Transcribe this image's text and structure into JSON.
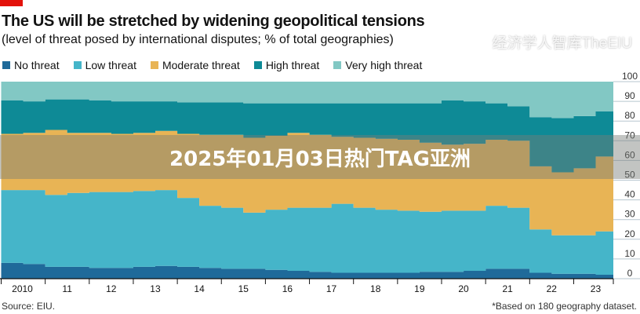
{
  "chart_data": {
    "type": "area",
    "stacked": true,
    "title": "The US will be stretched by widening geopolitical tensions",
    "subtitle": "(level of threat posed by international disputes; % of total geographies)",
    "x": [
      2010,
      2010.5,
      2011,
      2011.5,
      2012,
      2012.5,
      2013,
      2013.5,
      2014,
      2014.5,
      2015,
      2015.5,
      2016,
      2016.5,
      2017,
      2017.5,
      2018,
      2018.5,
      2019,
      2019.5,
      2020,
      2020.5,
      2021,
      2021.5,
      2022,
      2022.5,
      2023,
      2023.5,
      2023.9
    ],
    "x_tick_labels": [
      "2010",
      "11",
      "12",
      "13",
      "14",
      "15",
      "16",
      "17",
      "18",
      "19",
      "20",
      "21",
      "22",
      "23"
    ],
    "y_tick_labels": [
      "0",
      "10",
      "20",
      "30",
      "40",
      "50",
      "60",
      "70",
      "80",
      "90",
      "100"
    ],
    "ylim": [
      0,
      100
    ],
    "y_axis_side": "right",
    "grid": true,
    "legend_position": "top",
    "series": [
      {
        "name": "No threat",
        "color": "#1f6a9a",
        "values": [
          8,
          7.5,
          6,
          6,
          5.5,
          5.5,
          6,
          6.5,
          6,
          5.5,
          5,
          5,
          4.5,
          4,
          3.5,
          3,
          3,
          3,
          3,
          3.5,
          3.5,
          4,
          5,
          5,
          3,
          2.5,
          2.5,
          2,
          2
        ]
      },
      {
        "name": "Low threat",
        "color": "#45b5c9",
        "values": [
          37,
          37.5,
          36.5,
          37.5,
          38.5,
          38.5,
          38.5,
          38.5,
          35,
          31.5,
          31,
          28.5,
          30.5,
          32,
          32.5,
          35,
          33,
          32,
          31.5,
          30.5,
          31,
          30.5,
          32,
          31,
          22,
          19.5,
          19.5,
          22,
          22.5
        ]
      },
      {
        "name": "Moderate threat",
        "color": "#e8b455",
        "values": [
          28.5,
          29,
          33,
          30.5,
          30,
          29.5,
          29.5,
          30,
          32.5,
          36,
          37,
          38,
          37.5,
          38,
          37,
          34,
          35.5,
          36,
          36,
          35,
          33.5,
          34,
          33.5,
          34,
          32,
          32,
          34,
          38,
          39.5
        ]
      },
      {
        "name": "High threat",
        "color": "#0e8a96",
        "values": [
          17,
          16,
          15.5,
          17,
          16.5,
          16.5,
          16,
          15,
          16,
          16.5,
          16.5,
          17.5,
          16.5,
          15,
          16,
          17,
          17.5,
          18,
          18.5,
          20,
          22.5,
          21.5,
          18.5,
          17.5,
          25,
          27.5,
          26.5,
          23,
          21.5
        ]
      },
      {
        "name": "Very high threat",
        "color": "#82c8c4",
        "values": [
          9.5,
          10,
          9,
          9,
          9.5,
          10,
          10,
          10,
          10.5,
          10.5,
          10.5,
          11,
          11,
          11,
          11,
          11,
          11,
          11,
          11,
          11,
          9.5,
          10,
          11,
          12.5,
          18,
          18.5,
          17.5,
          15,
          14.5
        ]
      }
    ],
    "source": "Source: EIU.",
    "footnote": "*Based on 180 geography dataset."
  },
  "overlay": {
    "banner_text": "2025年01月03日热门TAG亚洲",
    "watermark": "经济学人智库TheEIU"
  },
  "colors": {
    "brand_red": "#e3120b"
  }
}
